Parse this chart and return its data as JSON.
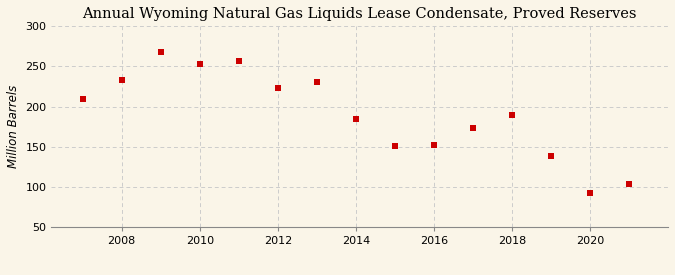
{
  "title": "Annual Wyoming Natural Gas Liquids Lease Condensate, Proved Reserves",
  "ylabel": "Million Barrels",
  "years": [
    2007,
    2008,
    2009,
    2010,
    2011,
    2012,
    2013,
    2014,
    2015,
    2016,
    2017,
    2018,
    2019,
    2020,
    2021
  ],
  "values": [
    210,
    233,
    268,
    253,
    257,
    223,
    230,
    184,
    151,
    152,
    173,
    190,
    138,
    92,
    104
  ],
  "marker_color": "#cc0000",
  "marker": "s",
  "marker_size": 4,
  "ylim": [
    50,
    300
  ],
  "yticks": [
    50,
    100,
    150,
    200,
    250,
    300
  ],
  "xticks": [
    2008,
    2010,
    2012,
    2014,
    2016,
    2018,
    2020
  ],
  "xlim": [
    2006.2,
    2022.0
  ],
  "background_color": "#faf5e8",
  "grid_color": "#cccccc",
  "title_fontsize": 10.5,
  "label_fontsize": 8.5,
  "source_fontsize": 7.5,
  "tick_fontsize": 8
}
